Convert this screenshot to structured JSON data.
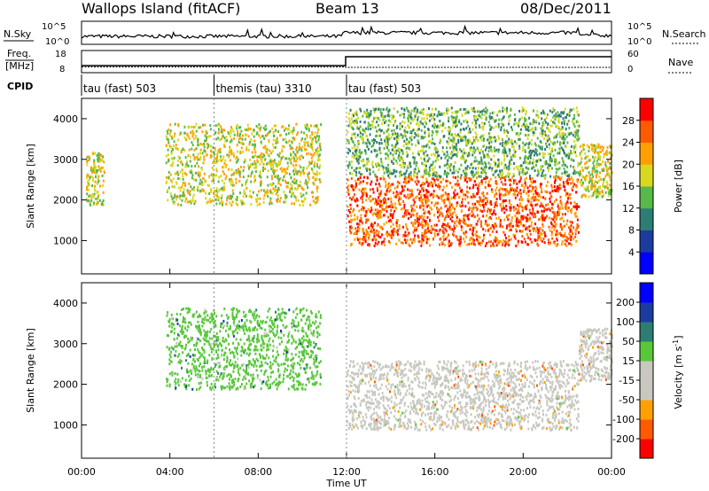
{
  "header": {
    "site": "Wallops Island (fitACF)",
    "beam": "Beam 13",
    "date": "08/Dec/2011"
  },
  "top_panels": {
    "nsky_label": "N.Sky",
    "nsearch_label": "N.Search",
    "count_ticks": [
      "10^5",
      "10^0"
    ],
    "freq_label_1": "Freq.",
    "freq_label_2": "[MHz]",
    "freq_ticks": [
      "18",
      "8"
    ],
    "nave_label": "Nave",
    "nave_ticks": [
      "60",
      "0"
    ],
    "cpid_label": "CPID"
  },
  "cpid_segments": [
    {
      "label": "tau (fast) 503",
      "start_hour": 0
    },
    {
      "label": "themis (tau) 3310",
      "start_hour": 6
    },
    {
      "label": "tau (fast) 503",
      "start_hour": 12
    }
  ],
  "chart_data": [
    {
      "type": "heatmap",
      "name": "power",
      "ylabel": "Slant Range [km]",
      "x_range_hours": [
        0,
        24
      ],
      "ylim": [
        180,
        4500
      ],
      "yticks": [
        "1000",
        "2000",
        "3000",
        "4000"
      ],
      "colorbar_label": "Power [dB]",
      "colorbar_ticks": [
        "28",
        "24",
        "20",
        "16",
        "12",
        "8",
        "4"
      ],
      "colors": [
        "#0000ff",
        "#1a3c9e",
        "#2e7d74",
        "#58b84a",
        "#d8d820",
        "#ffa000",
        "#ff5a00",
        "#ff0000"
      ],
      "features": [
        {
          "desc": "early evening echoes",
          "hours": [
            0.2,
            1.0
          ],
          "range_km": [
            1900,
            3200
          ],
          "power_db": 18
        },
        {
          "desc": "band across morning",
          "hours": [
            3.8,
            10.8
          ],
          "range_km": [
            1900,
            3900
          ],
          "power_db": 16
        },
        {
          "desc": "strong lower band",
          "hours": [
            12.0,
            22.5
          ],
          "range_km": [
            900,
            2600
          ],
          "power_db": 28
        },
        {
          "desc": "upper scatter",
          "hours": [
            12.0,
            22.5
          ],
          "range_km": [
            2600,
            4300
          ],
          "power_db": 14
        },
        {
          "desc": "late band",
          "hours": [
            22.5,
            24.0
          ],
          "range_km": [
            2100,
            3400
          ],
          "power_db": 20
        }
      ]
    },
    {
      "type": "heatmap",
      "name": "velocity",
      "xlabel": "Time UT",
      "ylabel": "Slant Range [km]",
      "x_range_hours": [
        0,
        24
      ],
      "ylim": [
        180,
        4500
      ],
      "yticks": [
        "1000",
        "2000",
        "3000",
        "4000"
      ],
      "xticks": [
        "00:00",
        "04:00",
        "08:00",
        "12:00",
        "16:00",
        "20:00",
        "00:00"
      ],
      "colorbar_label": "Velocity [m s^-1]",
      "colorbar_ticks": [
        "200",
        "100",
        "50",
        "15",
        "-15",
        "-50",
        "-100",
        "-200"
      ],
      "colors": [
        "#ff0000",
        "#ff5a00",
        "#ffa000",
        "#c8c8c0",
        "#c8c8c0",
        "#58c83a",
        "#2e7d74",
        "#1a3c9e",
        "#0000ff"
      ],
      "features": [
        {
          "desc": "morning band",
          "hours": [
            3.8,
            10.8
          ],
          "range_km": [
            1900,
            3900
          ],
          "velocity": 30
        },
        {
          "desc": "low-velocity band",
          "hours": [
            12.0,
            22.5
          ],
          "range_km": [
            900,
            2600
          ],
          "velocity": 0
        },
        {
          "desc": "late band",
          "hours": [
            22.5,
            24.0
          ],
          "range_km": [
            2100,
            3400
          ],
          "velocity": 0
        }
      ]
    }
  ]
}
